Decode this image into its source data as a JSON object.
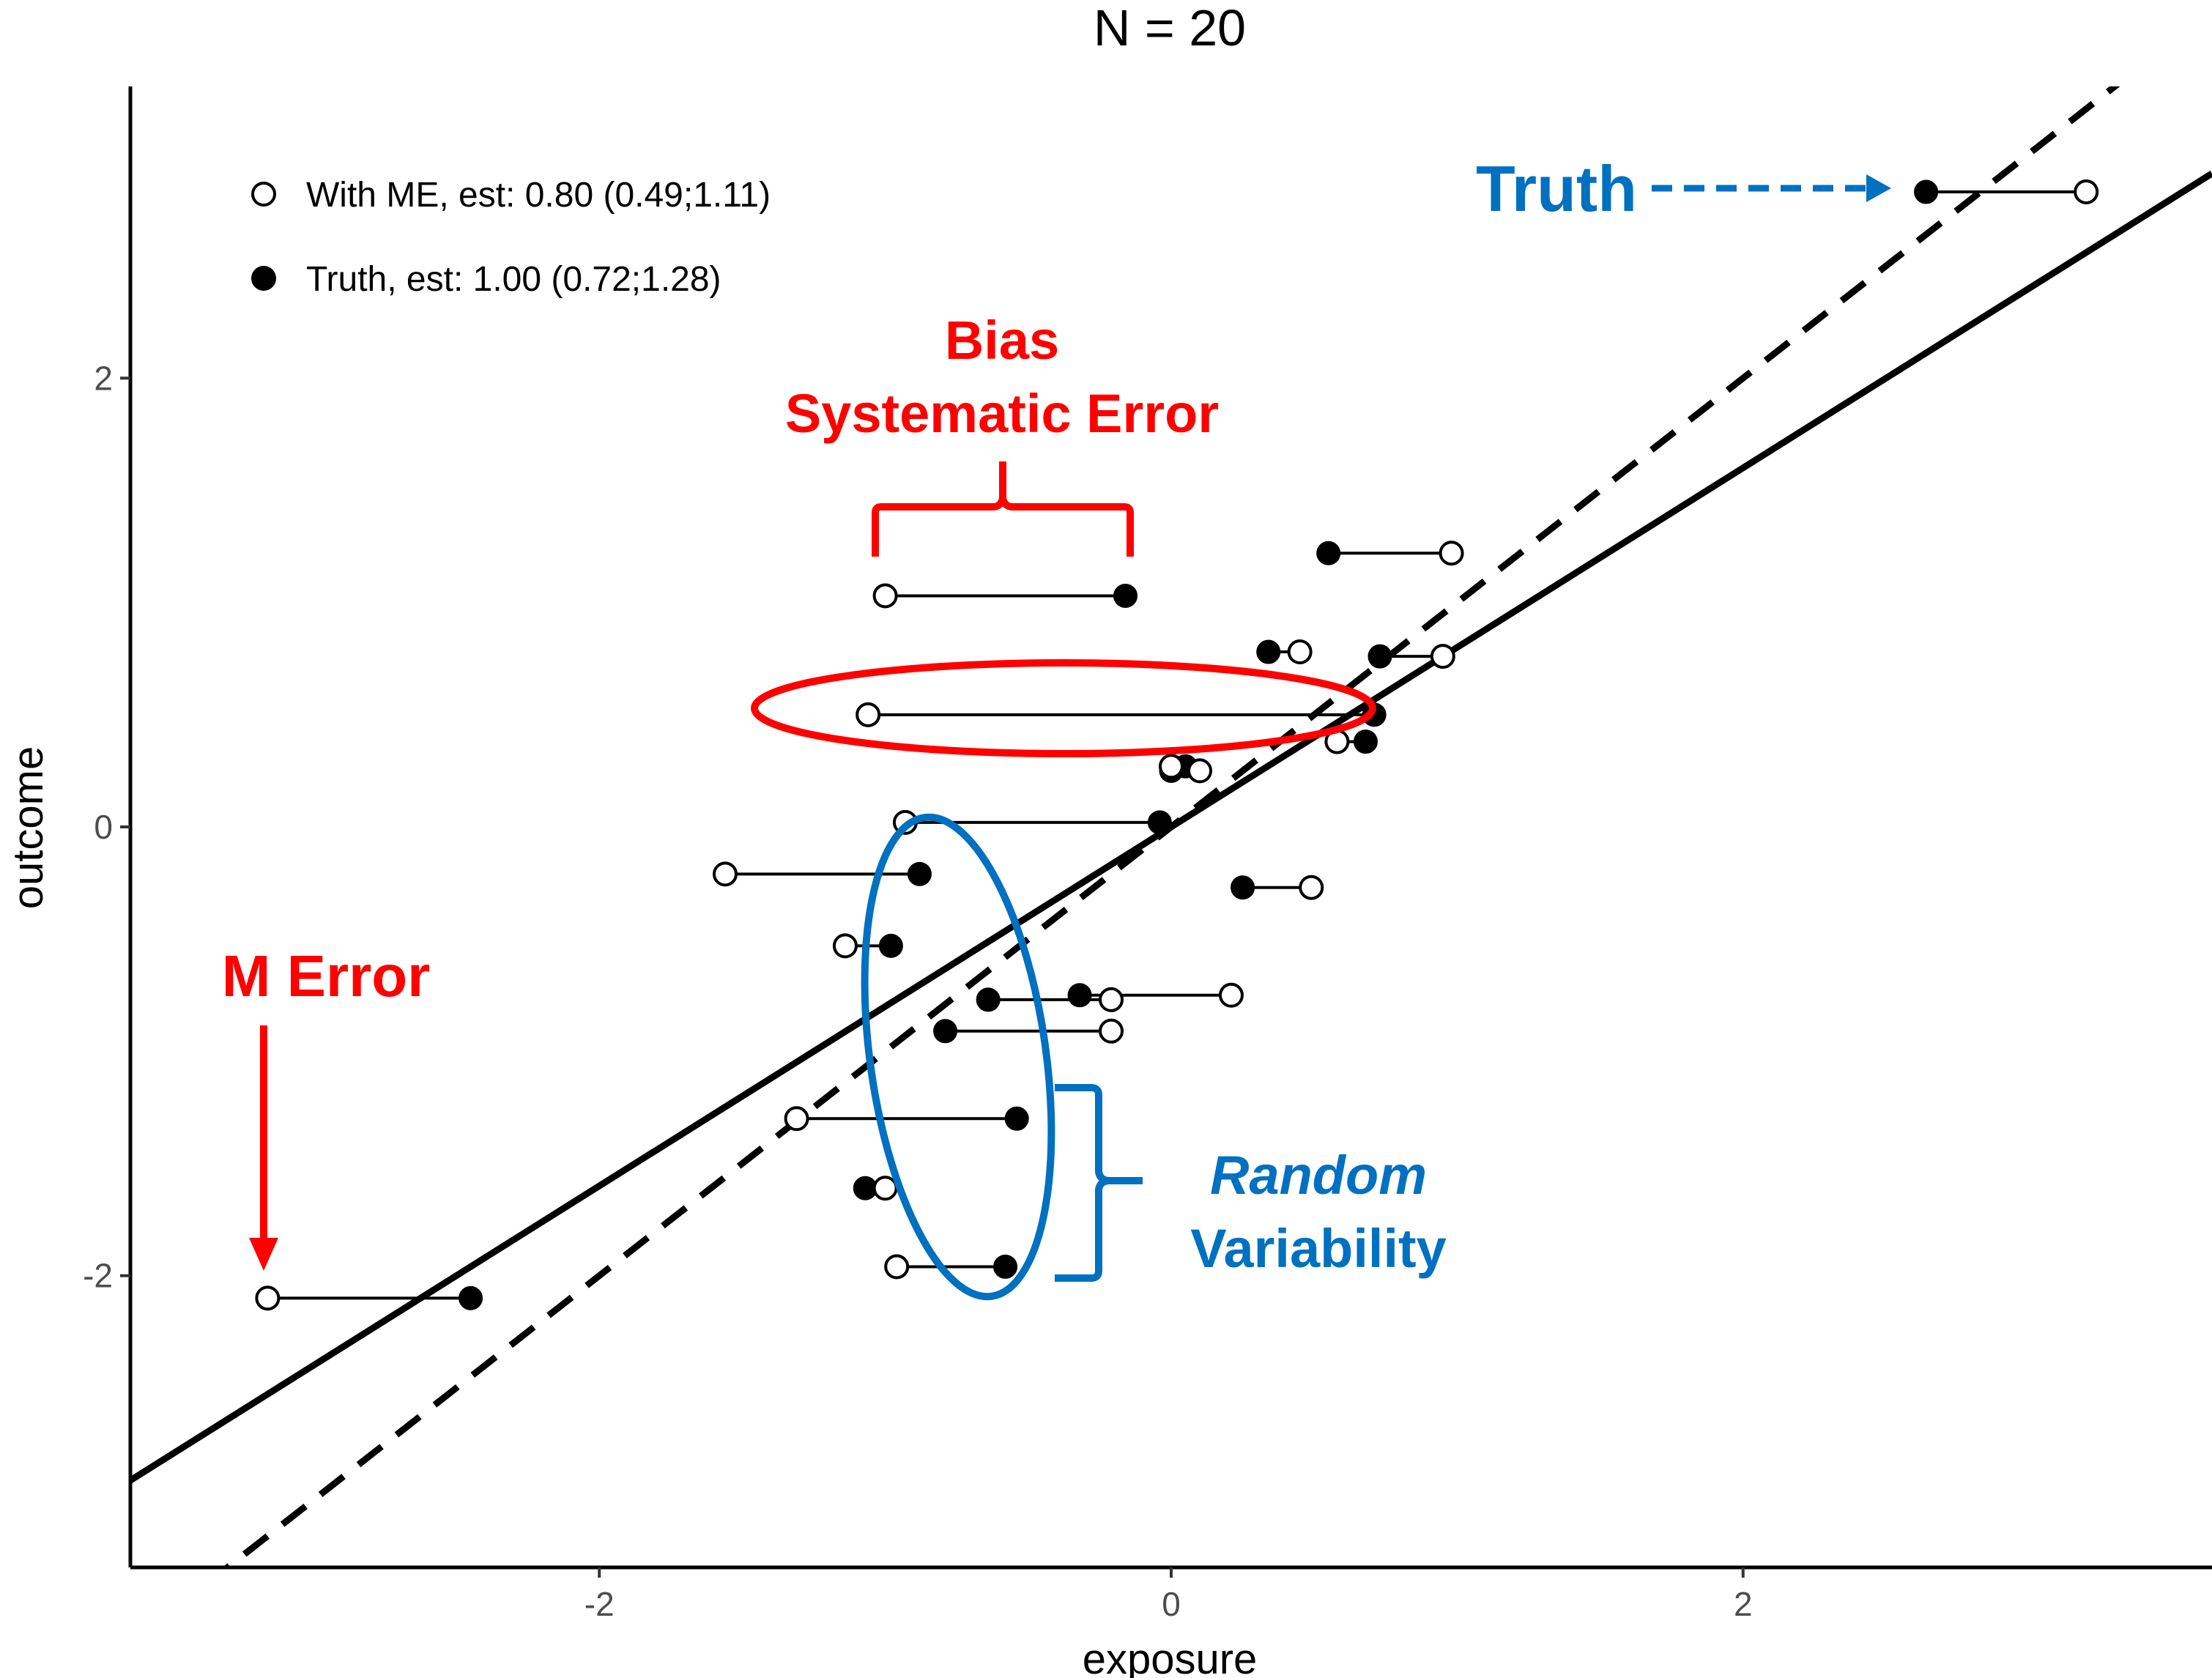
{
  "chart_data": {
    "type": "scatter",
    "title": "N = 20",
    "xlabel": "exposure",
    "ylabel": "outcome",
    "xlim": [
      -3.64,
      3.64
    ],
    "ylim": [
      -3.3,
      3.3
    ],
    "x_ticks": [
      -2,
      0,
      2
    ],
    "y_ticks": [
      -2,
      0,
      2
    ],
    "x_tick_labels": [
      "-2",
      "0",
      "2"
    ],
    "y_tick_labels": [
      "-2",
      "0",
      "2"
    ],
    "grid": false,
    "legend_position": "top-left",
    "series": [
      {
        "name": "With ME, est: 0.80 (0.49;1.11)",
        "marker": "open-circle",
        "slope": 0.8,
        "points": [
          {
            "x": 3.2,
            "y": 2.83
          },
          {
            "x": 0.98,
            "y": 1.22
          },
          {
            "x": -1.0,
            "y": 1.03
          },
          {
            "x": 0.45,
            "y": 0.78
          },
          {
            "x": 0.95,
            "y": 0.76
          },
          {
            "x": -1.06,
            "y": 0.5
          },
          {
            "x": 0.58,
            "y": 0.38
          },
          {
            "x": 0.1,
            "y": 0.25
          },
          {
            "x": 0.0,
            "y": 0.27
          },
          {
            "x": -0.93,
            "y": 0.02
          },
          {
            "x": -1.56,
            "y": -0.21
          },
          {
            "x": 0.49,
            "y": -0.27
          },
          {
            "x": -1.14,
            "y": -0.53
          },
          {
            "x": 0.21,
            "y": -0.75
          },
          {
            "x": -0.21,
            "y": -0.77
          },
          {
            "x": -0.21,
            "y": -0.91
          },
          {
            "x": -1.31,
            "y": -1.3
          },
          {
            "x": -1.0,
            "y": -1.61
          },
          {
            "x": -0.96,
            "y": -1.96
          },
          {
            "x": -3.16,
            "y": -2.1
          }
        ]
      },
      {
        "name": "Truth, est: 1.00 (0.72;1.28)",
        "marker": "filled-circle",
        "slope": 1.0,
        "points": [
          {
            "x": 2.64,
            "y": 2.83
          },
          {
            "x": 0.55,
            "y": 1.22
          },
          {
            "x": -0.16,
            "y": 1.03
          },
          {
            "x": 0.34,
            "y": 0.78
          },
          {
            "x": 0.73,
            "y": 0.76
          },
          {
            "x": 0.71,
            "y": 0.5
          },
          {
            "x": 0.68,
            "y": 0.38
          },
          {
            "x": 0.0,
            "y": 0.25
          },
          {
            "x": 0.05,
            "y": 0.27
          },
          {
            "x": -0.04,
            "y": 0.02
          },
          {
            "x": -0.88,
            "y": -0.21
          },
          {
            "x": 0.25,
            "y": -0.27
          },
          {
            "x": -0.98,
            "y": -0.53
          },
          {
            "x": -0.32,
            "y": -0.75
          },
          {
            "x": -0.64,
            "y": -0.77
          },
          {
            "x": -0.79,
            "y": -0.91
          },
          {
            "x": -0.54,
            "y": -1.3
          },
          {
            "x": -1.07,
            "y": -1.61
          },
          {
            "x": -0.58,
            "y": -1.96
          },
          {
            "x": -2.45,
            "y": -2.1
          }
        ]
      }
    ],
    "annotations": {
      "truth": "Truth",
      "bias_line1": "Bias",
      "bias_line2": "Systematic Error",
      "m_error": "M Error",
      "random_line1": "Random",
      "random_line2": "Variability"
    }
  },
  "colors": {
    "red": "#ff0000",
    "blue": "#0070c0",
    "ink": "#000000",
    "tick": "#4d4d4d"
  }
}
